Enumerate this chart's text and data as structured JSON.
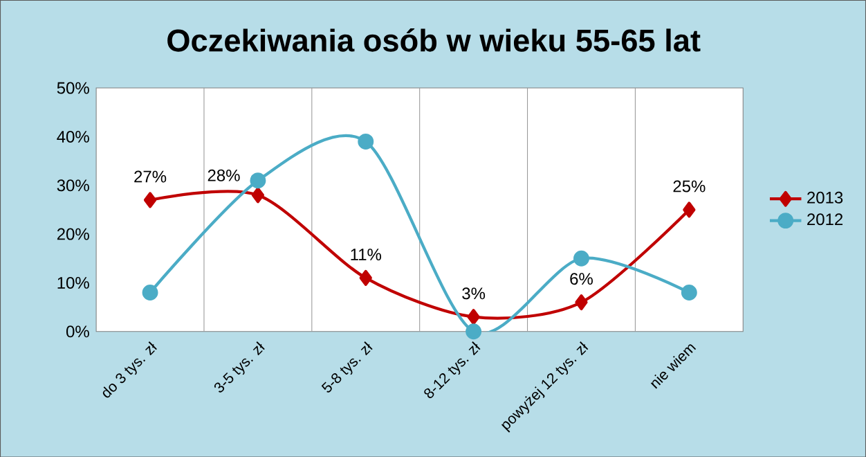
{
  "chart_data": {
    "type": "line",
    "title": "Oczekiwania osób w wieku 55-65 lat",
    "categories": [
      "do 3 tys. zł",
      "3-5 tys. zł",
      "5-8 tys. zł",
      "8-12 tys. zł",
      "powyżej 12 tys. zł",
      "nie wiem"
    ],
    "series": [
      {
        "name": "2013",
        "color": "#c00000",
        "marker": "diamond",
        "values": [
          27,
          28,
          11,
          3,
          6,
          25
        ],
        "value_labels": [
          "27%",
          "28%",
          "11%",
          "3%",
          "6%",
          "25%"
        ]
      },
      {
        "name": "2012",
        "color": "#4bacc6",
        "marker": "circle",
        "values": [
          8,
          31,
          39,
          0,
          15,
          8
        ]
      }
    ],
    "ylim": [
      0,
      50
    ],
    "yticks": [
      {
        "value": 0,
        "label": "0%"
      },
      {
        "value": 10,
        "label": "10%"
      },
      {
        "value": 20,
        "label": "20%"
      },
      {
        "value": 30,
        "label": "30%"
      },
      {
        "value": 40,
        "label": "40%"
      },
      {
        "value": 50,
        "label": "50%"
      }
    ],
    "grid": "x",
    "legend": "right",
    "line_style": "solid"
  }
}
